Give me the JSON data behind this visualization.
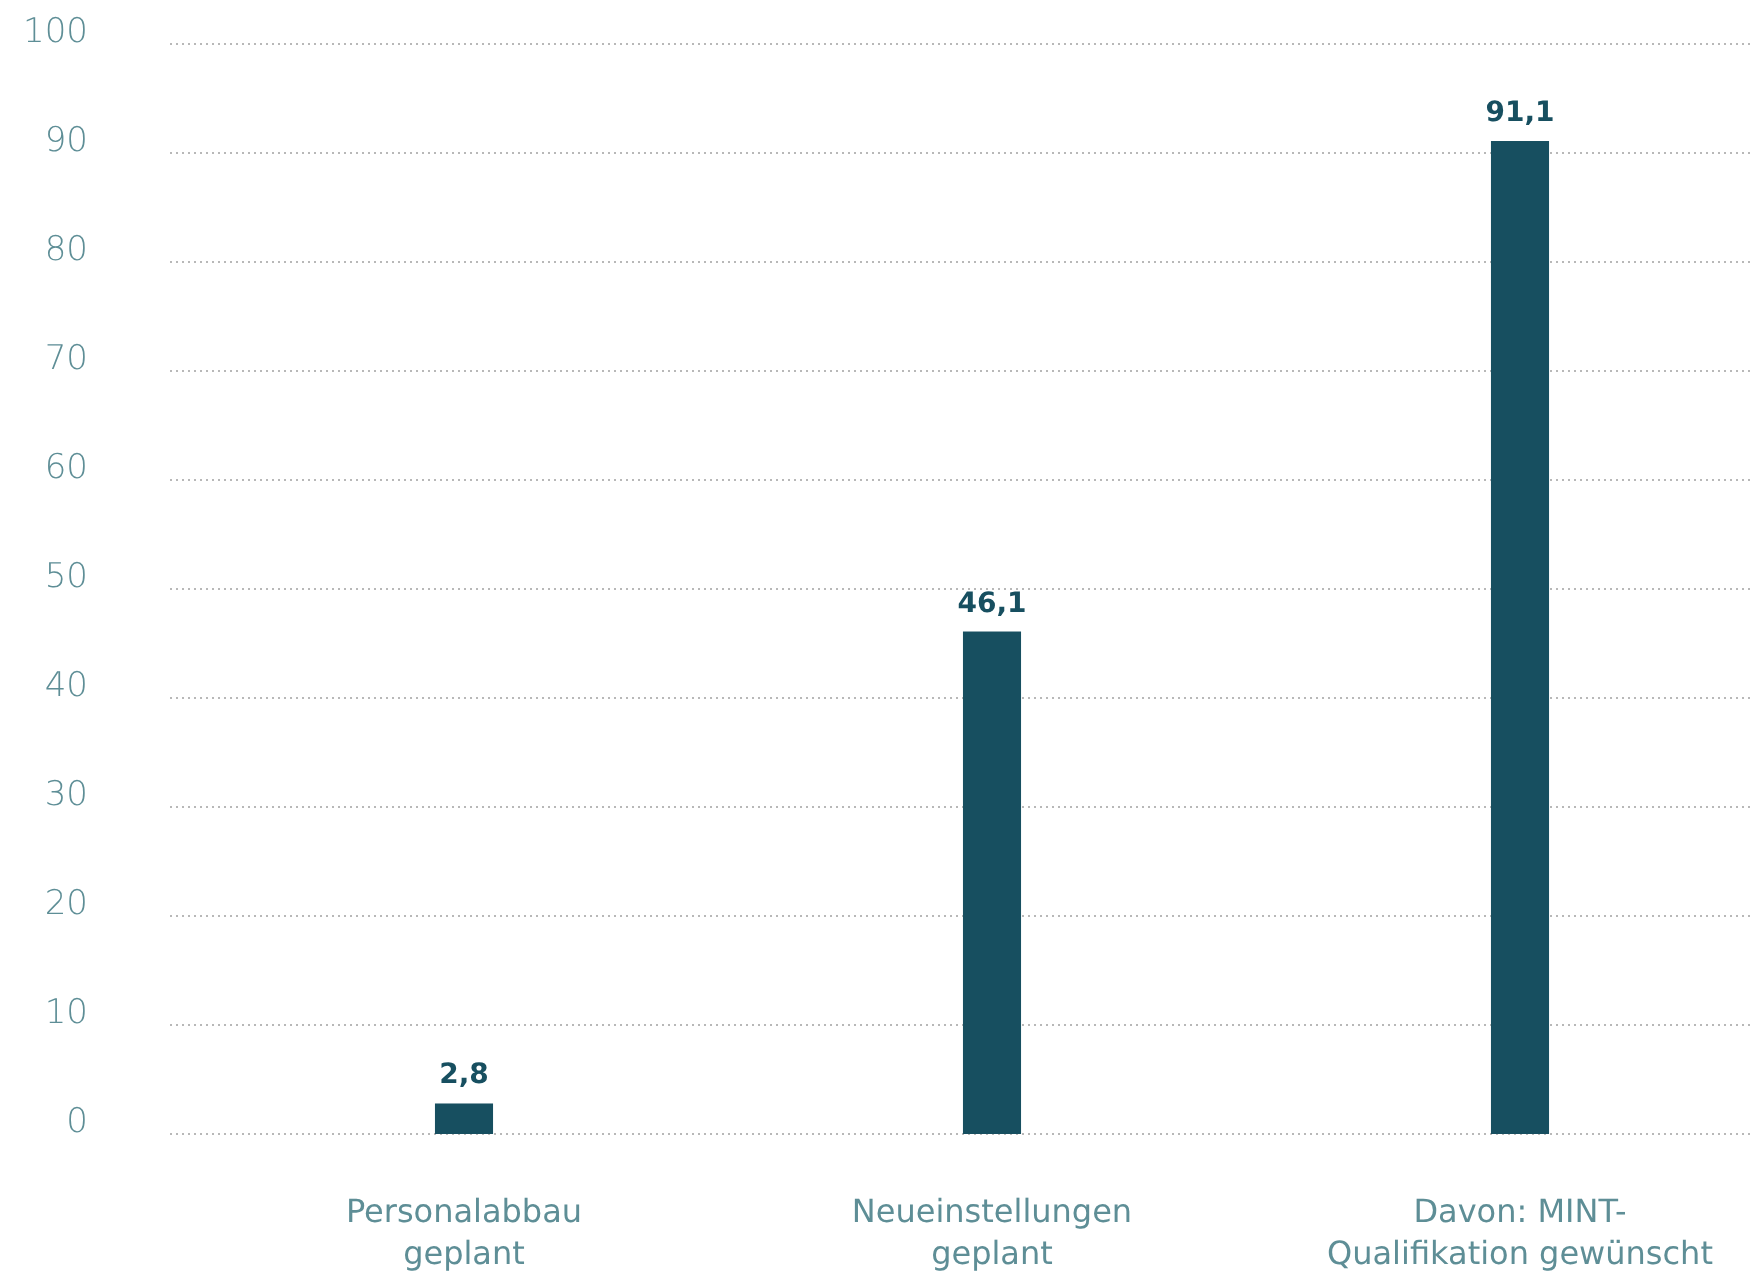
{
  "chart_data": {
    "type": "bar",
    "categories": [
      "Personalabbau geplant",
      "Neueinstellungen geplant",
      "Davon: MINT-Qualifikation gewünscht"
    ],
    "values": [
      2.8,
      46.1,
      91.1
    ],
    "color": "#174f60",
    "ylim": [
      0,
      100
    ],
    "yticks": [
      0,
      10,
      20,
      30,
      40,
      50,
      60,
      70,
      80,
      90,
      100
    ],
    "grid": "y",
    "value_labels": [
      "2,8",
      "46,1",
      "91,1"
    ]
  }
}
